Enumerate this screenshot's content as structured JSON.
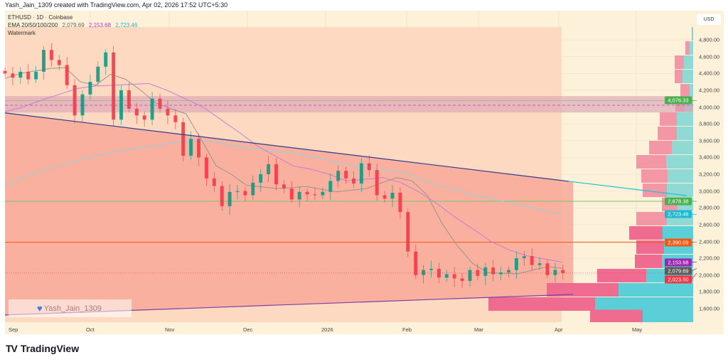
{
  "header": "Yash_Jain_1309 created with TradingView.com, Apr 02, 2026 17:52 UTC+5:30",
  "legend": {
    "symbol": "ETHUSD · 1D · Coinbase",
    "ema_label": "EMA 20/50/100/200",
    "ema_values": [
      "2,079.69",
      "2,153.68",
      "2,723.46"
    ],
    "watermark_label": "Watermark"
  },
  "currency": "USD",
  "watermark": {
    "text": "Yash_Jain_1309",
    "icon": "heart-icon"
  },
  "brand": {
    "logo": "TV",
    "name": "TradingView"
  },
  "colors": {
    "up": "#089981",
    "down": "#f23645",
    "ema20": "#8f8f8f",
    "ema50": "#c77dd6",
    "ema200": "#8fd6db",
    "green_level": "#4caf50",
    "cyan_level": "#22b8cf",
    "orange_level": "#f05a14",
    "purple_label": "#9c27b0",
    "gray_label": "#5d5d5d",
    "red_label": "#f23645",
    "trendline": "#2f3a8f",
    "lower_line": "#7b3fa8"
  },
  "chart_data": {
    "type": "candlestick",
    "symbol": "ETHUSD",
    "interval": "1D",
    "ylim": [
      1450,
      4950
    ],
    "price_ticks": [
      "4,800.00",
      "4,600.00",
      "4,400.00",
      "4,200.00",
      "4,000.00",
      "3,800.00",
      "3,600.00",
      "3,400.00",
      "3,200.00",
      "3,000.00",
      "2,800.00",
      "2,600.00",
      "2,400.00",
      "2,200.00",
      "2,000.00",
      "1,800.00",
      "1,600.00"
    ],
    "time_labels": [
      "Sep",
      "Oct",
      "Nov",
      "Dec",
      "2026",
      "Feb",
      "Mar",
      "Apr",
      "May"
    ],
    "start_date": "2025-08-29",
    "sample_interval_days": 3,
    "closes": [
      4400,
      4350,
      4420,
      4330,
      4420,
      4680,
      4560,
      4500,
      4260,
      3900,
      4150,
      4300,
      4480,
      4650,
      3850,
      4200,
      3980,
      3900,
      3850,
      4100,
      3980,
      3900,
      3820,
      3420,
      3620,
      3400,
      3150,
      3060,
      2820,
      2990,
      3000,
      2950,
      3100,
      3200,
      3320,
      3080,
      3030,
      2900,
      2990,
      2960,
      2950,
      2990,
      3120,
      3240,
      3150,
      3090,
      3330,
      3250,
      2950,
      2910,
      2980,
      2750,
      2280,
      2000,
      2060,
      2075,
      1970,
      2010,
      1960,
      1930,
      2060,
      1990,
      2090,
      2010,
      2030,
      2060,
      2200,
      2225,
      2120,
      2140,
      2000,
      2060,
      2023.5
    ],
    "ema20": [
      4340,
      4400,
      4430,
      4460,
      4470,
      4300,
      4260,
      4390,
      4330,
      4200,
      4050,
      3980,
      3920,
      3620,
      3300,
      3200,
      3070,
      3050,
      3030,
      3040,
      3055,
      3020,
      2990,
      3010,
      3030,
      3100,
      3160,
      3120,
      2950,
      2610,
      2350,
      2140,
      2030,
      2020,
      2015,
      2060,
      2100,
      2080
    ],
    "ema50": [
      3945,
      4000,
      4080,
      4150,
      4220,
      4250,
      4260,
      4270,
      4280,
      4200,
      4100,
      4000,
      3850,
      3700,
      3540,
      3420,
      3300,
      3260,
      3200,
      3120,
      3140,
      3160,
      3100,
      2990,
      2850,
      2690,
      2550,
      2400,
      2300,
      2230,
      2190,
      2153.68
    ],
    "ema200": [
      3073,
      3200,
      3300,
      3386,
      3460,
      3510,
      3560,
      3605,
      3580,
      3520,
      3480,
      3445,
      3380,
      3310,
      3260,
      3220,
      3100,
      3005,
      2930,
      2860,
      2790,
      2723.46
    ],
    "levels": [
      {
        "price": 4076.33,
        "label": "4,076.33",
        "color": "#4caf50"
      },
      {
        "price": 2878.38,
        "label": "2,878.38",
        "color": "#4caf50"
      },
      {
        "price": 2723.46,
        "label": "2,723.46",
        "color": "#22b8cf"
      },
      {
        "price": 2390.09,
        "label": "2,390.09",
        "color": "#f05a14"
      },
      {
        "price": 2153.68,
        "label": "2,153.68",
        "color": "#9c27b0"
      },
      {
        "price": 2079.69,
        "label": "2,079.69",
        "color": "#5d5d5d"
      },
      {
        "price": 2023.5,
        "label": "2,023.50",
        "color": "#f23645"
      }
    ],
    "resistance_zone": {
      "from": 3935,
      "to": 4130
    },
    "zone_midline": 4021,
    "trendline_upper": {
      "start": [
        "2025-08-29",
        3930
      ],
      "end": [
        "2026-05-20",
        2945
      ]
    },
    "trendline_lower": {
      "start": [
        "2025-08-29",
        1525
      ],
      "end": [
        "2026-04-06",
        1770
      ]
    },
    "volume_profile": [
      {
        "price": 4868,
        "total": 2,
        "up": 1
      },
      {
        "price": 4698,
        "total": 11,
        "up": 5
      },
      {
        "price": 4529,
        "total": 26,
        "up": 13
      },
      {
        "price": 4360,
        "total": 26,
        "up": 15
      },
      {
        "price": 4190,
        "total": 18,
        "up": 5
      },
      {
        "price": 4021,
        "total": 25,
        "up": 12
      },
      {
        "price": 3852,
        "total": 47,
        "up": 23
      },
      {
        "price": 3683,
        "total": 50,
        "up": 23
      },
      {
        "price": 3513,
        "total": 62,
        "up": 30
      },
      {
        "price": 3344,
        "total": 80,
        "up": 38
      },
      {
        "price": 3175,
        "total": 73,
        "up": 36
      },
      {
        "price": 3005,
        "total": 71,
        "up": 37
      },
      {
        "price": 2836,
        "total": 44,
        "up": 22
      },
      {
        "price": 2667,
        "total": 80,
        "up": 37
      },
      {
        "price": 2497,
        "total": 90,
        "up": 43,
        "value_area": true
      },
      {
        "price": 2328,
        "total": 80,
        "up": 41,
        "value_area": true
      },
      {
        "price": 2159,
        "total": 82,
        "up": 44,
        "value_area": true
      },
      {
        "price": 1989,
        "total": 135,
        "up": 66,
        "value_area": true
      },
      {
        "price": 1820,
        "total": 206,
        "up": 105,
        "value_area": true
      },
      {
        "price": 1651,
        "total": 288,
        "up": 138,
        "value_area": true
      },
      {
        "price": 1503,
        "total": 145,
        "up": 71,
        "value_area": true
      }
    ]
  }
}
